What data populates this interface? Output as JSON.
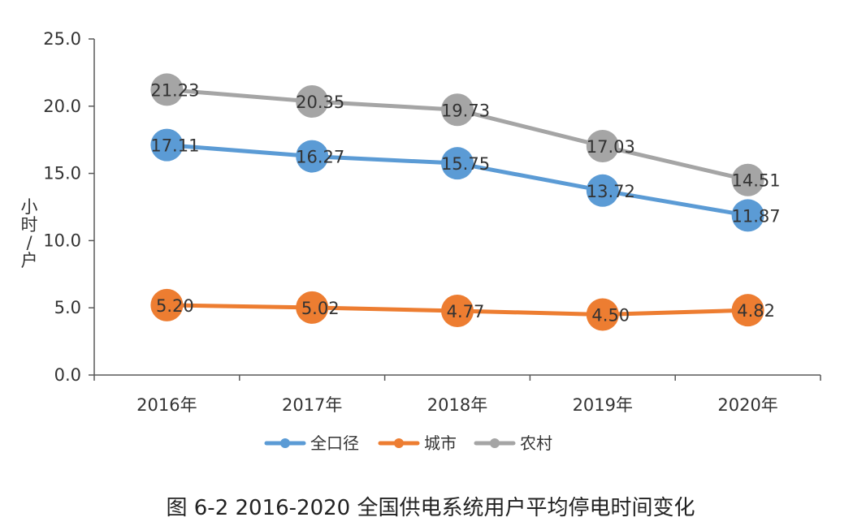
{
  "chart_data": {
    "type": "line",
    "categories": [
      "2016年",
      "2017年",
      "2018年",
      "2019年",
      "2020年"
    ],
    "series": [
      {
        "name": "全口径",
        "color": "#5b9bd5",
        "values": [
          17.11,
          16.27,
          15.75,
          13.72,
          11.87
        ],
        "labels": [
          "17.11",
          "16.27",
          "15.75",
          "13.72",
          "11.87"
        ]
      },
      {
        "name": "城市",
        "color": "#ed7d31",
        "values": [
          5.2,
          5.02,
          4.77,
          4.5,
          4.82
        ],
        "labels": [
          "5.20",
          "5.02",
          "4.77",
          "4.50",
          "4.82"
        ]
      },
      {
        "name": "农村",
        "color": "#a5a5a5",
        "values": [
          21.23,
          20.35,
          19.73,
          17.03,
          14.51
        ],
        "labels": [
          "21.23",
          "20.35",
          "19.73",
          "17.03",
          "14.51"
        ]
      }
    ],
    "ylim": [
      0,
      25
    ],
    "yticks": [
      0,
      5,
      10,
      15,
      20,
      25
    ],
    "ytick_labels": [
      "0.0",
      "5.0",
      "10.0",
      "15.0",
      "20.0",
      "25.0"
    ],
    "ylabel_chars": [
      "小",
      "时",
      "/",
      "户"
    ],
    "xlabel": "",
    "legend_position": "bottom",
    "caption": "图 6-2   2016-2020 全国供电系统用户平均停电时间变化"
  }
}
